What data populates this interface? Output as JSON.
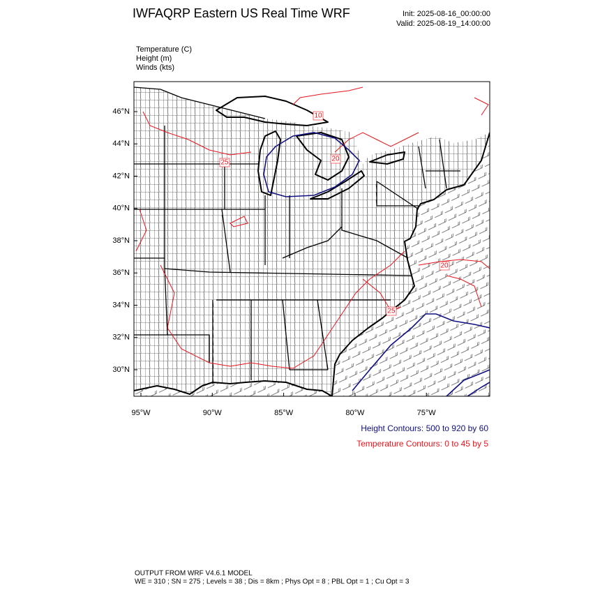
{
  "header": {
    "title": "IWFAQRP Eastern US Real Time WRF",
    "init": "Init: 2025-08-16_00:00:00",
    "valid": "Valid: 2025-08-19_14:00:00"
  },
  "legend": [
    "Temperature   (C)",
    "Height   (m)",
    "Winds   (kts)"
  ],
  "axes": {
    "lat_labels": [
      "46°N",
      "44°N",
      "42°N",
      "40°N",
      "38°N",
      "36°N",
      "34°N",
      "32°N",
      "30°N"
    ],
    "lon_labels": [
      "95°W",
      "90°W",
      "85°W",
      "80°W",
      "75°W"
    ]
  },
  "contour_labels": [
    "10",
    "20",
    "25",
    "20",
    "25"
  ],
  "contour_info": {
    "height": "Height Contours: 500 to 920 by 60",
    "temperature": "Temperature Contours: 0 to 45 by 5"
  },
  "footer": [
    "OUTPUT FROM WRF V4.6.1 MODEL",
    "WE = 310 ; SN = 275 ; Levels = 38 ; Dis = 8km ; Phys Opt = 8 ; PBL Opt = 1 ; Cu Opt = 3"
  ]
}
